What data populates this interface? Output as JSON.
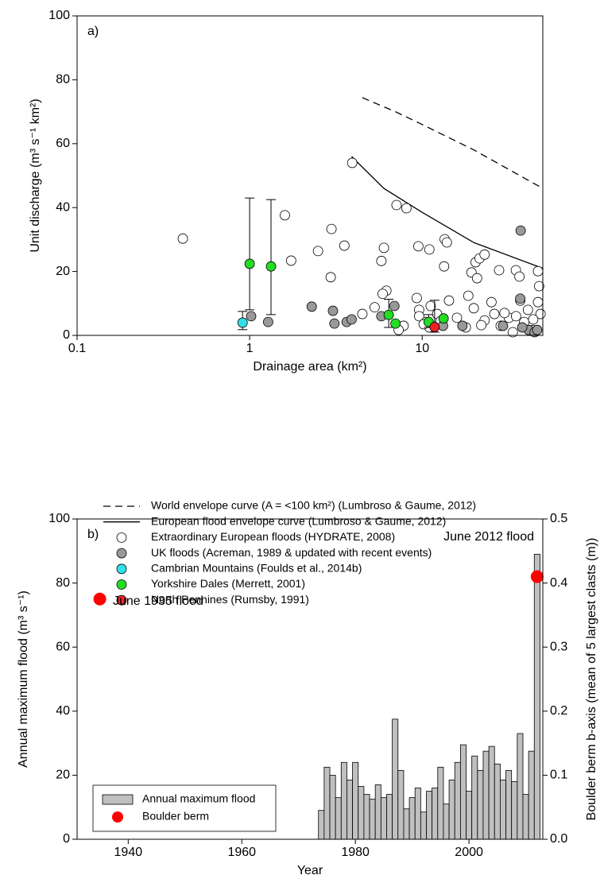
{
  "chart_data": [
    {
      "type": "scatter",
      "label": "a)",
      "xlabel": "Drainage area (km²)",
      "ylabel": "Unit discharge (m³ s⁻¹ km²)",
      "xscale": "log",
      "xlim": [
        0.1,
        50
      ],
      "xticks": [
        0.1,
        1,
        10
      ],
      "ylim": [
        0,
        100
      ],
      "yticks": [
        0,
        20,
        40,
        60,
        80,
        100
      ],
      "legend": "below",
      "series": [
        {
          "name": "World envelope curve (A = <100 km²) (Lumbroso & Gaume, 2012)",
          "type": "line",
          "dash": true,
          "color": "#000000",
          "x": [
            4.5,
            7,
            10,
            20,
            50
          ],
          "values": [
            74.4,
            70,
            66,
            58,
            46
          ]
        },
        {
          "name": "European flood envelope curve (Lumbroso & Gaume, 2012)",
          "type": "line",
          "dash": false,
          "color": "#000000",
          "x": [
            3.9,
            6,
            10,
            20,
            50
          ],
          "values": [
            56,
            46,
            38.5,
            29,
            21
          ]
        },
        {
          "name": "Extraordinary European floods (HYDRATE, 2008)",
          "type": "scatter",
          "color": "#ffffff",
          "x": [
            0.41,
            1.6,
            1.74,
            2.49,
            2.98,
            2.95,
            3.54,
            3.93,
            4.5,
            5.3,
            5.8,
            6.0,
            6.2,
            5.9,
            7.1,
            8.1,
            9.5,
            9.3,
            11,
            13.5,
            13.9,
            14.3,
            13.4,
            19.3,
            20.4,
            21.5,
            23,
            27.9,
            34.9,
            36.6,
            46.9,
            47.6,
            46.9,
            20.8,
            18.5,
            9.6,
            9.6,
            10.5,
            11,
            11.2,
            12.2,
            7.8,
            7.3,
            15.9,
            19.9,
            23,
            26.2,
            28.5,
            31.8,
            37,
            39,
            41,
            43.7,
            25.2,
            17.9,
            33.5,
            48.5,
            10.2,
            12.8,
            22,
            30,
            35,
            44
          ],
          "values": [
            30.3,
            37.6,
            23.4,
            26.4,
            33.3,
            18.2,
            28.1,
            54,
            6.7,
            8.8,
            23.3,
            27.4,
            14,
            13,
            40.8,
            39.8,
            27.9,
            11.7,
            26.9,
            30.1,
            29.1,
            10.9,
            21.6,
            19.7,
            22.9,
            24.1,
            25.3,
            20.4,
            20.4,
            18.4,
            20.1,
            15.4,
            10.4,
            17.9,
            12.4,
            8,
            6,
            4.2,
            2.5,
            9.2,
            6.7,
            3,
            1.7,
            5.5,
            8.5,
            4.7,
            6.7,
            3,
            5.5,
            10.9,
            4.2,
            8,
            1.7,
            10.4,
            2.5,
            1,
            6.7,
            3.5,
            4.5,
            3.2,
            7,
            6,
            5
          ]
        },
        {
          "name": "UK floods (Acreman, 1989 & updated with recent events)",
          "type": "scatter",
          "color": "#999999",
          "x": [
            1.02,
            1.28,
            2.29,
            3.04,
            3.1,
            3.65,
            3.9,
            5.8,
            6.9,
            13.2,
            17.1,
            29.4,
            37.2,
            37,
            41.4,
            44.8,
            46.4,
            38
          ],
          "values": [
            6,
            4.2,
            9,
            7.7,
            3.7,
            4.2,
            5,
            6,
            9.2,
            3,
            3,
            3,
            32.8,
            11.5,
            1.7,
            1,
            1.7,
            2.5
          ]
        },
        {
          "name": "Cambrian Mountains (Foulds et al., 2014b)",
          "type": "scatter",
          "color": "#33e0e8",
          "x": [
            0.91
          ],
          "values": [
            4.0
          ],
          "err_low": [
            1.8
          ],
          "err_high": [
            7.5
          ]
        },
        {
          "name": "Yorkshire Dales (Merrett, 2001)",
          "type": "scatter",
          "color": "#22dd22",
          "x": [
            1.0,
            1.33,
            6.4,
            7.0,
            10.9,
            13.3
          ],
          "values": [
            22.4,
            21.6,
            6.4,
            3.7,
            4.2,
            5.3
          ],
          "err_low": [
            8,
            6.5,
            2.5,
            null,
            2.5,
            null
          ],
          "err_high": [
            43,
            42.5,
            11.3,
            null,
            6.5,
            null
          ]
        },
        {
          "name": "North Pennines (Rumsby, 1991)",
          "type": "scatter",
          "color": "#ee2222",
          "x": [
            11.8
          ],
          "values": [
            2.6
          ],
          "err_low": [
            1.0
          ],
          "err_high": [
            11.0
          ]
        }
      ]
    },
    {
      "type": "bar",
      "label": "b)",
      "xlabel": "Year",
      "ylabel": "Annual maximum flood (m³ s⁻¹)",
      "y2label": "Boulder berm b-axis (mean of 5 largest clasts (m))",
      "xlim": [
        1931,
        2013
      ],
      "xticks": [
        1940,
        1960,
        1980,
        2000
      ],
      "ylim": [
        0,
        100
      ],
      "yticks": [
        0,
        20,
        40,
        60,
        80,
        100
      ],
      "y2lim": [
        0,
        0.5
      ],
      "y2ticks": [
        {
          "value": 0,
          "label": "0.0"
        },
        0.1,
        0.2,
        0.3,
        0.4,
        0.5
      ],
      "legend": "lower left",
      "annotations": [
        "June 1935 flood",
        "June 2012 flood"
      ],
      "series": [
        {
          "name": "Annual maximum flood",
          "type": "bar",
          "color": "#c0c0c0",
          "x": [
            1974,
            1975,
            1976,
            1977,
            1978,
            1979,
            1980,
            1981,
            1982,
            1983,
            1984,
            1985,
            1986,
            1987,
            1988,
            1989,
            1990,
            1991,
            1992,
            1993,
            1994,
            1995,
            1996,
            1997,
            1998,
            1999,
            2000,
            2001,
            2002,
            2003,
            2004,
            2005,
            2006,
            2007,
            2008,
            2009,
            2010,
            2011,
            2012
          ],
          "values": [
            9,
            22.5,
            20,
            13,
            24,
            18.5,
            24,
            16.5,
            14,
            12.5,
            17,
            13,
            14,
            37.5,
            21.5,
            9.5,
            13,
            16,
            8.5,
            15,
            16,
            22.5,
            11,
            18.5,
            24,
            29.5,
            15,
            26,
            21.5,
            27.5,
            29,
            23.5,
            18.5,
            21.5,
            18,
            33,
            14,
            27.5,
            89
          ]
        },
        {
          "name": "Boulder berm",
          "type": "scatter",
          "color": "#ff0000",
          "axis": "y2",
          "x": [
            1935,
            2012
          ],
          "values": [
            0.375,
            0.41
          ]
        }
      ]
    }
  ]
}
